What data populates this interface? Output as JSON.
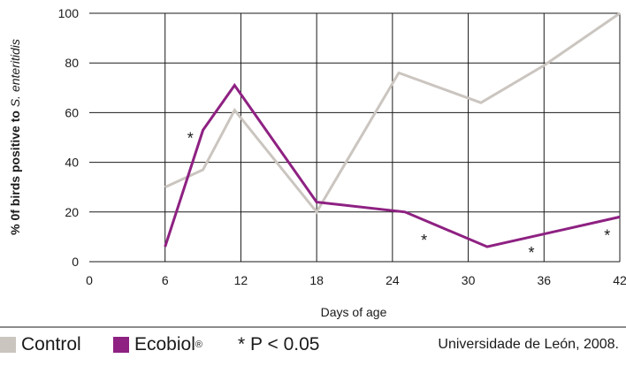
{
  "chart_data": {
    "type": "line",
    "xlabel": "Days of age",
    "ylabel_prefix": "% 0f birds positive to ",
    "ylabel_species": "S. enteritidis",
    "xlim": [
      0,
      42
    ],
    "ylim": [
      0,
      100
    ],
    "x_ticks": [
      0,
      6,
      12,
      18,
      24,
      30,
      36,
      42
    ],
    "y_ticks": [
      0,
      20,
      40,
      60,
      80,
      100
    ],
    "grid": true,
    "series": [
      {
        "name": "Control",
        "color": "#cbc5c0",
        "points": [
          [
            6,
            30
          ],
          [
            9,
            37
          ],
          [
            11.5,
            61
          ],
          [
            18,
            20
          ],
          [
            24.5,
            76
          ],
          [
            31,
            64
          ],
          [
            36,
            79
          ],
          [
            42,
            100
          ]
        ]
      },
      {
        "name": "Ecobiol®",
        "color": "#8e2182",
        "points": [
          [
            6,
            6
          ],
          [
            9,
            53
          ],
          [
            11.5,
            71
          ],
          [
            18,
            24
          ],
          [
            25,
            20
          ],
          [
            31.5,
            6
          ],
          [
            42,
            18
          ]
        ]
      }
    ],
    "annotations": [
      {
        "text": "*",
        "x": 8,
        "y": 51
      },
      {
        "text": "*",
        "x": 26.5,
        "y": 10
      },
      {
        "text": "*",
        "x": 35,
        "y": 5
      },
      {
        "text": "*",
        "x": 41,
        "y": 12
      }
    ]
  },
  "legend": {
    "control_label": "Control",
    "ecobiol_label": "Ecobiol",
    "ecobiol_mark": "®",
    "significance": "* P < 0.05"
  },
  "source": "Universidade de León, 2008."
}
